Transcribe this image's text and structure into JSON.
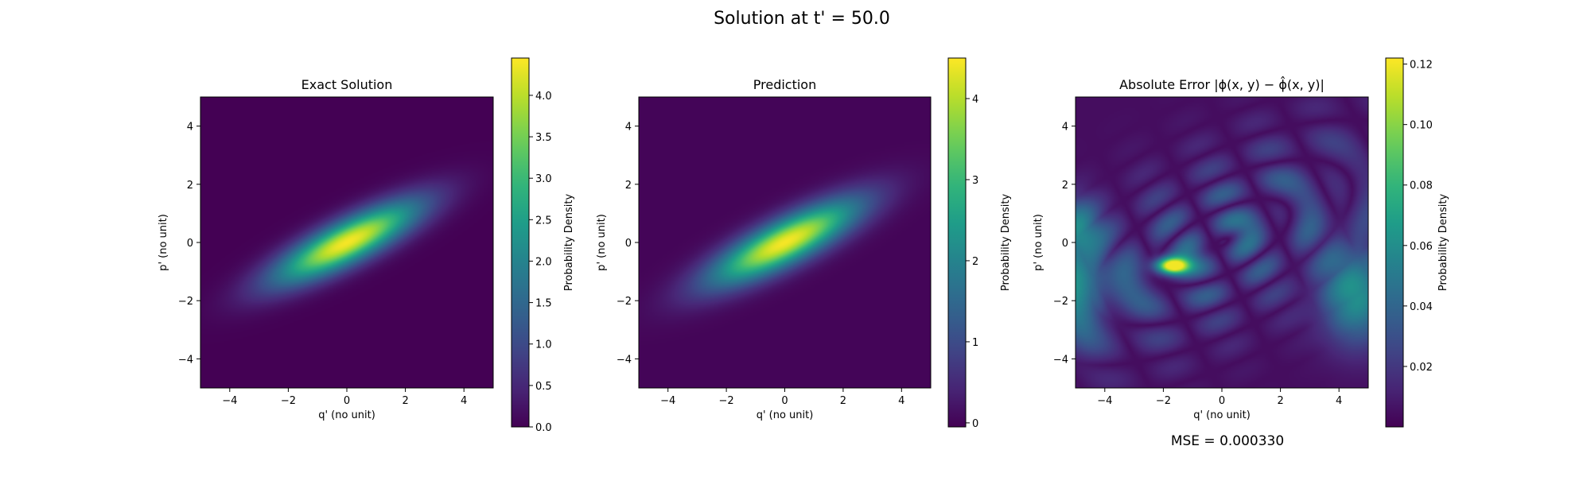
{
  "figure": {
    "title": "Solution at t' = 50.0",
    "footer": "MSE = 0.000330"
  },
  "chart_data": [
    {
      "type": "heatmap",
      "title": "Exact Solution",
      "xlabel": "q' (no unit)",
      "ylabel": "p' (no unit)",
      "xlim": [
        -5,
        5
      ],
      "ylim": [
        -5,
        5
      ],
      "xticks": [
        "−4",
        "−2",
        "0",
        "2",
        "4"
      ],
      "yticks": [
        "−4",
        "−2",
        "0",
        "2",
        "4"
      ],
      "colormap": "viridis",
      "colorbar": {
        "label": "Probability Density",
        "range": [
          0,
          4.45
        ],
        "ticks": [
          0.0,
          0.5,
          1.0,
          1.5,
          2.0,
          2.5,
          3.0,
          3.5,
          4.0
        ],
        "tick_labels": [
          "0.0",
          "0.5",
          "1.0",
          "1.5",
          "2.0",
          "2.5",
          "3.0",
          "3.5",
          "4.0"
        ]
      },
      "field": {
        "kind": "gaussian",
        "center": [
          0,
          0
        ],
        "angle_deg": 27,
        "sigma_major": 1.9,
        "sigma_minor": 0.5,
        "peak": 4.4
      }
    },
    {
      "type": "heatmap",
      "title": "Prediction",
      "xlabel": "q' (no unit)",
      "ylabel": "p' (no unit)",
      "xlim": [
        -5,
        5
      ],
      "ylim": [
        -5,
        5
      ],
      "xticks": [
        "−4",
        "−2",
        "0",
        "2",
        "4"
      ],
      "yticks": [
        "−4",
        "−2",
        "0",
        "2",
        "4"
      ],
      "colormap": "viridis",
      "colorbar": {
        "label": "Probability Density",
        "range": [
          -0.05,
          4.5
        ],
        "ticks": [
          0,
          1,
          2,
          3,
          4
        ],
        "tick_labels": [
          "0",
          "1",
          "2",
          "3",
          "4"
        ]
      },
      "field": {
        "kind": "gaussian",
        "center": [
          0,
          0
        ],
        "angle_deg": 27,
        "sigma_major": 1.95,
        "sigma_minor": 0.52,
        "peak": 4.45
      }
    },
    {
      "type": "heatmap",
      "title": "Absolute Error |ϕ(x, y) − ϕ̂(x, y)|",
      "xlabel": "q' (no unit)",
      "ylabel": "p' (no unit)",
      "xlim": [
        -5,
        5
      ],
      "ylim": [
        -5,
        5
      ],
      "xticks": [
        "−4",
        "−2",
        "0",
        "2",
        "4"
      ],
      "yticks": [
        "−4",
        "−2",
        "0",
        "2",
        "4"
      ],
      "colormap": "viridis",
      "colorbar": {
        "label": "Probability Density",
        "range": [
          0,
          0.122
        ],
        "ticks": [
          0.02,
          0.04,
          0.06,
          0.08,
          0.1,
          0.12
        ],
        "tick_labels": [
          "0.02",
          "0.04",
          "0.06",
          "0.08",
          "0.10",
          "0.12"
        ]
      },
      "field": {
        "kind": "error",
        "peak_location": [
          -1.7,
          -0.8
        ],
        "peak": 0.12
      }
    }
  ]
}
